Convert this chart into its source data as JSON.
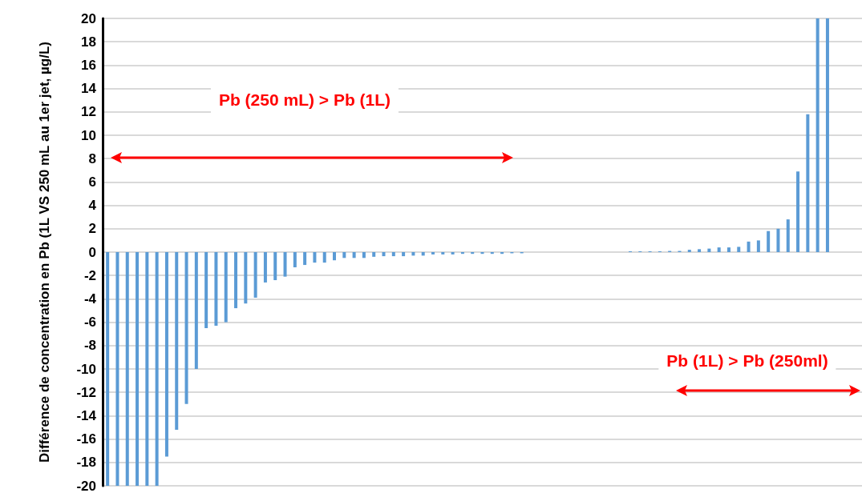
{
  "chart_data": {
    "type": "bar",
    "ylabel": "Différence de concentration en Pb (1L VS 250 mL au 1er jet, µg/L)",
    "categories": [
      null,
      null,
      null,
      null,
      null,
      null,
      null,
      null,
      null,
      null,
      null,
      null,
      null,
      null,
      null,
      null,
      null,
      null,
      null,
      null,
      null,
      null,
      null,
      null,
      null,
      null,
      null,
      null,
      null,
      null,
      null,
      null,
      null,
      null,
      null,
      null,
      null,
      null,
      null,
      null,
      null,
      null,
      null,
      null,
      null,
      null,
      null,
      null,
      null,
      null,
      null,
      null,
      null,
      null,
      null,
      null,
      null,
      null,
      null,
      null,
      null,
      null,
      null,
      null,
      null,
      null,
      null,
      null,
      null,
      null,
      null,
      null,
      null,
      null,
      null,
      null,
      null
    ],
    "series": [
      {
        "color": "#5b9bd5",
        "values": [
          -20,
          -20,
          -20,
          -20,
          -20,
          -20,
          -17.5,
          -15.2,
          -13,
          -10,
          -6.5,
          -6.3,
          -6,
          -4.8,
          -4.4,
          -3.9,
          -2.6,
          -2.4,
          -2.1,
          -1.3,
          -1.1,
          -0.9,
          -0.9,
          -0.7,
          -0.5,
          -0.5,
          -0.5,
          -0.4,
          -0.35,
          -0.35,
          -0.35,
          -0.3,
          -0.3,
          -0.2,
          -0.2,
          -0.2,
          -0.15,
          -0.15,
          -0.15,
          -0.15,
          -0.15,
          -0.1,
          -0.1,
          0,
          0,
          0,
          0,
          0,
          0,
          0,
          0,
          0,
          0,
          0.07,
          0.07,
          0.07,
          0.07,
          0.1,
          0.1,
          0.2,
          0.25,
          0.3,
          0.4,
          0.4,
          0.45,
          0.9,
          1,
          1.8,
          2,
          2.8,
          6.9,
          11.8,
          20,
          20,
          null,
          null,
          null
        ]
      }
    ],
    "ylim": [
      -20,
      20
    ],
    "yticks": [
      -20,
      -18,
      -16,
      -14,
      -12,
      -10,
      -8,
      -6,
      -4,
      -2,
      0,
      2,
      4,
      6,
      8,
      10,
      12,
      14,
      16,
      18,
      20
    ],
    "grid": "y",
    "tick_labels": "y",
    "annotations": [
      "Pb (250 mL) > Pb (1L)",
      "Pb (1L) > Pb (250ml)"
    ]
  }
}
